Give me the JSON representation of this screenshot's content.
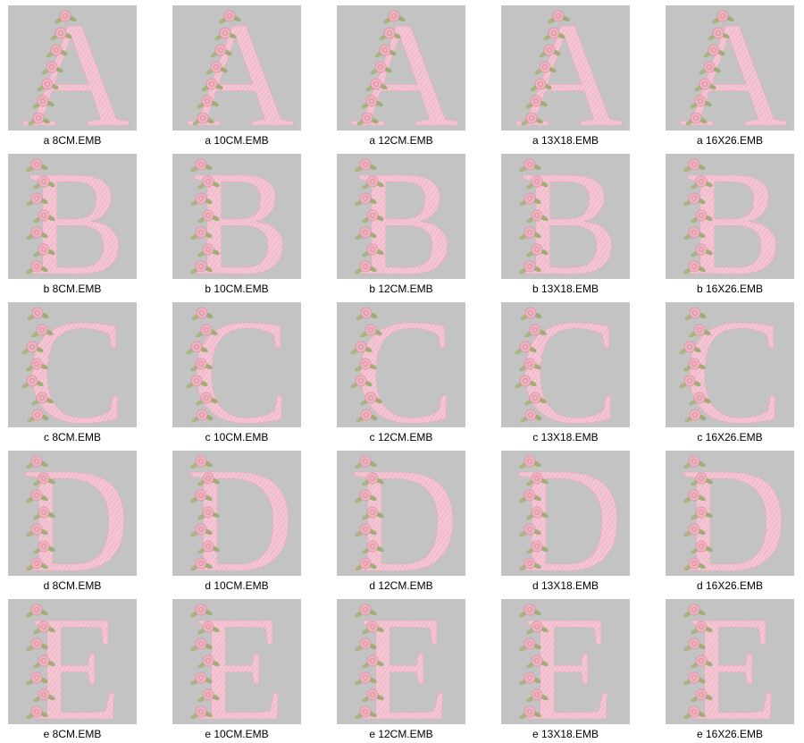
{
  "rows": [
    {
      "letter": "A",
      "files": [
        "a 8CM.EMB",
        "a 10CM.EMB",
        "a 12CM.EMB",
        "a 13X18.EMB",
        "a 16X26.EMB"
      ]
    },
    {
      "letter": "B",
      "files": [
        "b 8CM.EMB",
        "b 10CM.EMB",
        "b 12CM.EMB",
        "b 13X18.EMB",
        "b 16X26.EMB"
      ]
    },
    {
      "letter": "C",
      "files": [
        "c 8CM.EMB",
        "c 10CM.EMB",
        "c 12CM.EMB",
        "c 13X18.EMB",
        "c 16X26.EMB"
      ]
    },
    {
      "letter": "D",
      "files": [
        "d 8CM.EMB",
        "d 10CM.EMB",
        "d 12CM.EMB",
        "d 13X18.EMB",
        "d 16X26.EMB"
      ]
    },
    {
      "letter": "E",
      "files": [
        "e 8CM.EMB",
        "e 10CM.EMB",
        "e 12CM.EMB",
        "e 13X18.EMB",
        "e 16X26.EMB"
      ]
    }
  ]
}
